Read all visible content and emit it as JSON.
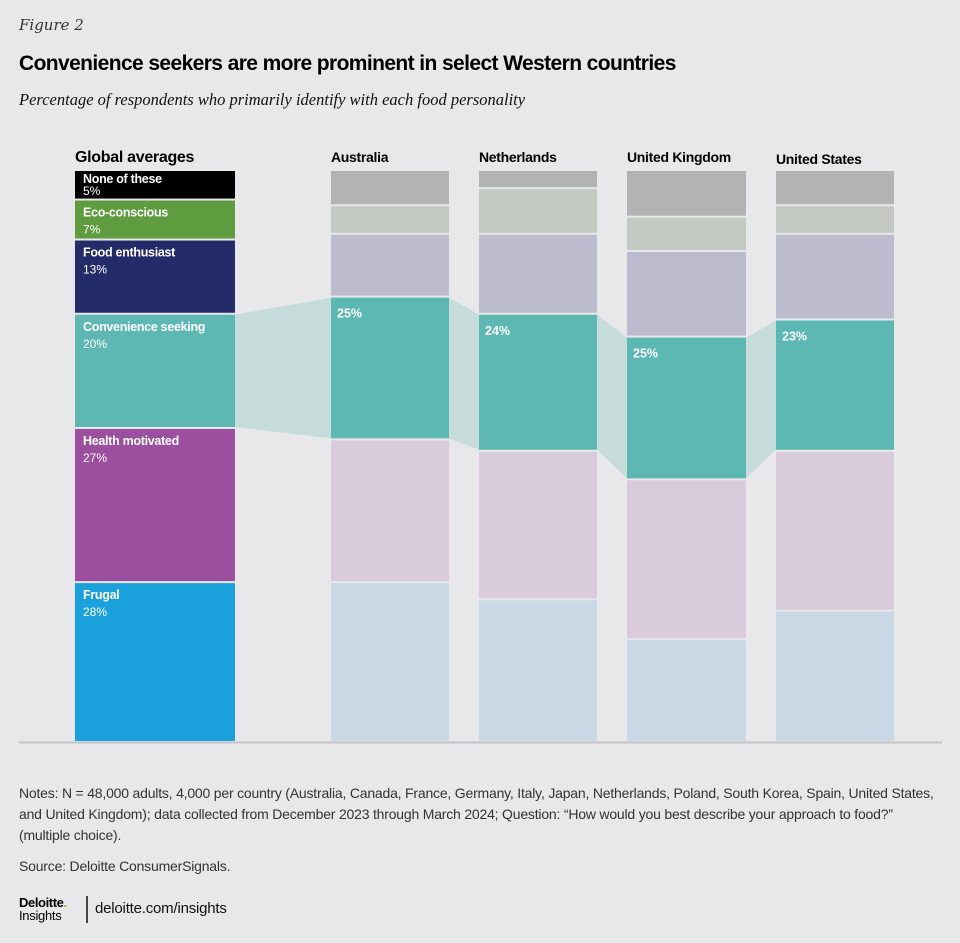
{
  "header": {
    "figure_label": "Figure 2",
    "title": "Convenience seekers are more prominent in select Western countries",
    "subtitle": "Percentage of respondents who primarily identify with each food personality"
  },
  "chart_data": {
    "type": "bar",
    "subtype": "stacked-100",
    "title": "Convenience seekers are more prominent in select Western countries",
    "subtitle": "Percentage of respondents who primarily identify with each food personality",
    "xlabel": "",
    "ylabel": "",
    "ylim": [
      0,
      100
    ],
    "grid": false,
    "categories": [
      "Global averages",
      "Australia",
      "Netherlands",
      "United Kingdom",
      "United States"
    ],
    "stack_order_top_to_bottom": [
      "None of these",
      "Eco-conscious",
      "Food enthusiast",
      "Convenience seeking",
      "Health motivated",
      "Frugal"
    ],
    "series": [
      {
        "name": "None of these",
        "values": [
          5,
          6,
          3,
          8,
          6
        ],
        "color": "#000000",
        "muted_color": "#b3b3b3",
        "labeled": [
          true,
          false,
          false,
          false,
          false
        ]
      },
      {
        "name": "Eco-conscious",
        "values": [
          7,
          5,
          8,
          6,
          5
        ],
        "color": "#5f9b3f",
        "muted_color": "#c4c8c2",
        "labeled": [
          true,
          false,
          false,
          false,
          false
        ]
      },
      {
        "name": "Food enthusiast",
        "values": [
          13,
          11,
          14,
          15,
          15
        ],
        "color": "#232c69",
        "muted_color": "#bdbccf",
        "labeled": [
          true,
          false,
          false,
          false,
          false
        ]
      },
      {
        "name": "Convenience seeking",
        "values": [
          20,
          25,
          24,
          25,
          23
        ],
        "color": "#5db8b3",
        "muted_color": "#5db8b3",
        "labeled": [
          true,
          true,
          true,
          true,
          true
        ]
      },
      {
        "name": "Health motivated",
        "values": [
          27,
          25,
          26,
          28,
          28
        ],
        "color": "#9c4f9e",
        "muted_color": "#d9cbdc",
        "labeled": [
          true,
          false,
          false,
          false,
          false
        ]
      },
      {
        "name": "Frugal",
        "values": [
          28,
          28,
          25,
          18,
          23
        ],
        "color": "#1aa1db",
        "muted_color": "#c9dae6",
        "labeled": [
          true,
          false,
          false,
          false,
          false
        ]
      }
    ],
    "value_labels": {
      "Global averages": [
        "5%",
        "7%",
        "13%",
        "20%",
        "27%",
        "28%"
      ],
      "Australia": "25%",
      "Netherlands": "24%",
      "United Kingdom": "25%",
      "United States": "23%"
    },
    "highlight_series": "Convenience seeking",
    "connector_color": "#c6dcda",
    "baseline_color": "#c4c4c8"
  },
  "notes": "Notes: N = 48,000 adults, 4,000 per country (Australia, Canada, France, Germany, Italy, Japan, Netherlands, Poland, South Korea, Spain, United States, and United Kingdom); data collected from December 2023 through March 2024; Question: “How would you best describe your approach to food?” (multiple choice).",
  "source": "Source: Deloitte ConsumerSignals.",
  "footer": {
    "logo_top": "Deloitte",
    "logo_dot": ".",
    "logo_bottom": "Insights",
    "url": "deloitte.com/insights"
  }
}
